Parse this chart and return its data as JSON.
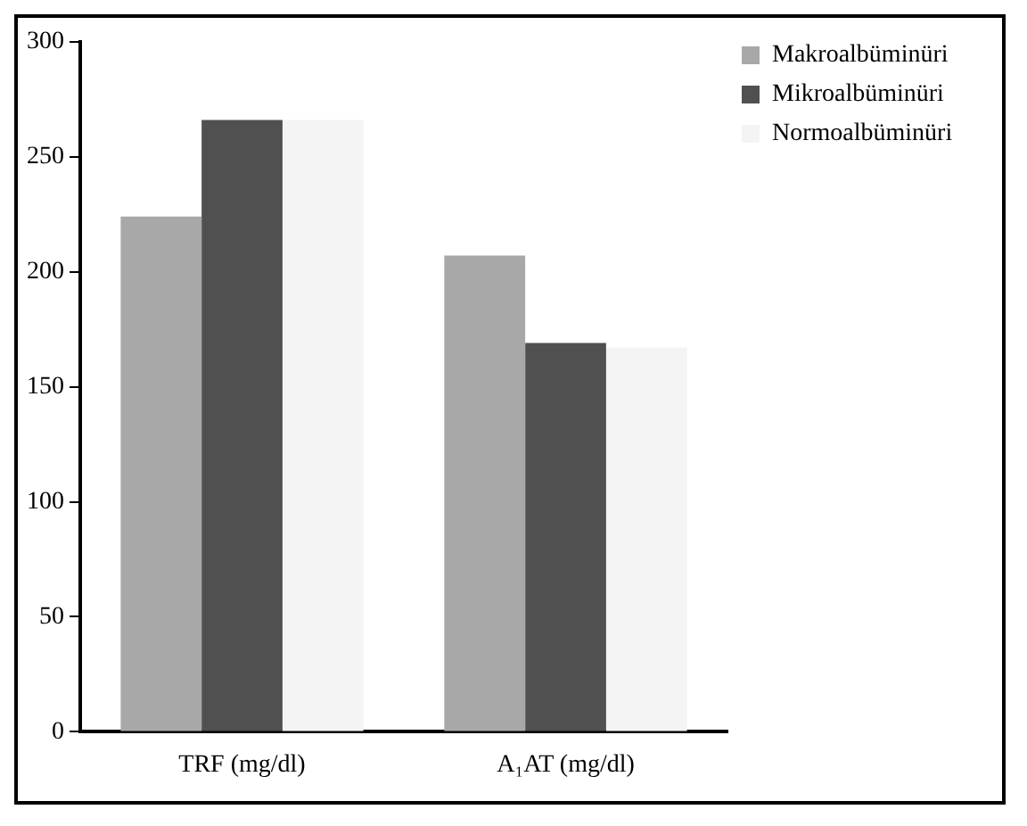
{
  "chart_data": {
    "type": "bar",
    "categories": [
      "TRF (mg/dl)",
      "A₁AT (mg/dl)"
    ],
    "series": [
      {
        "name": "Makroalbüminüri",
        "color": "#a8a8a8",
        "values": [
          224,
          207
        ]
      },
      {
        "name": "Mikroalbüminüri",
        "color": "#505050",
        "values": [
          266,
          169
        ]
      },
      {
        "name": "Normoalbüminüri",
        "color": "#f4f4f4",
        "values": [
          266,
          167
        ]
      }
    ],
    "ylim": [
      0,
      300
    ],
    "yticks": [
      0,
      50,
      100,
      150,
      200,
      250,
      300
    ],
    "grid": false,
    "legend": "top right"
  }
}
